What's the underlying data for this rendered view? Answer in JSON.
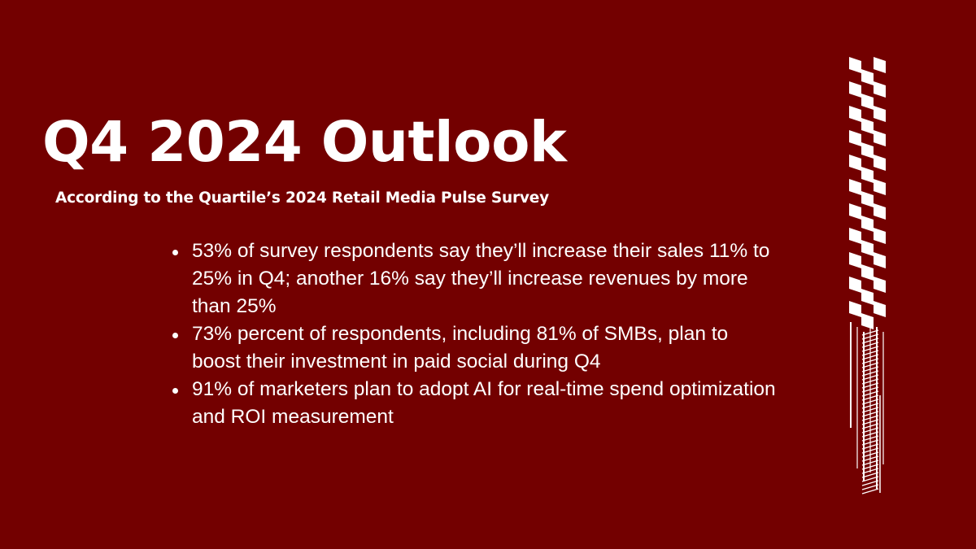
{
  "slide": {
    "background": "#730000",
    "accent": "#ffffff",
    "title": "Q4 2024 Outlook",
    "subtitle": "According to the Quartile’s 2024 Retail Media Pulse Survey",
    "bullets": [
      "53% of survey respondents say they’ll increase their sales 11% to 25% in Q4; another 16% say they’ll increase revenues by more than 25%",
      "73% percent of respondents, including 81% of SMBs, plan to boost their investment in paid social during Q4",
      "91% of marketers plan to adopt AI for real-time spend optimization and ROI measurement"
    ],
    "decoration": {
      "icon": "checkered-flag-strip",
      "color": "#ffffff"
    }
  }
}
